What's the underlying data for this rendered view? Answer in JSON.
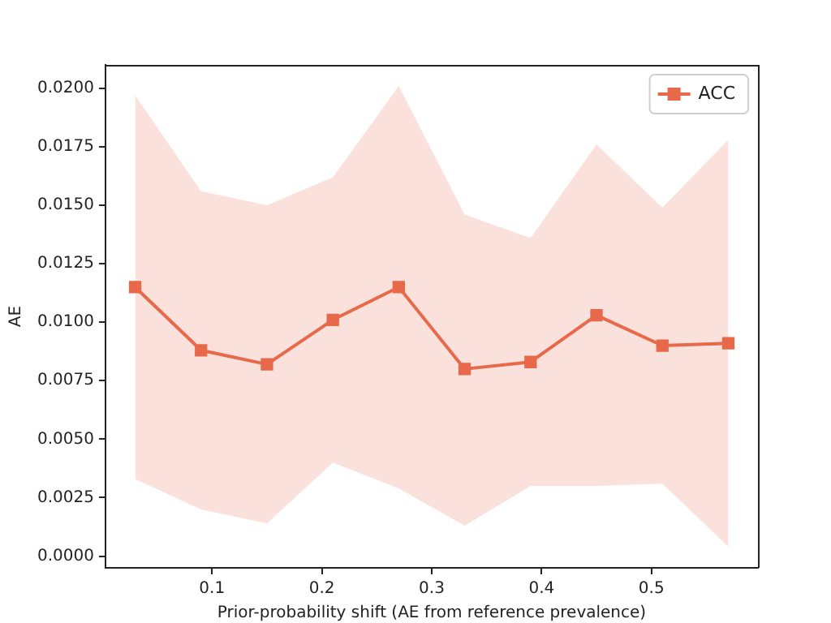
{
  "chart_data": {
    "type": "line",
    "xlabel": "Prior-probability shift (AE from reference prevalence)",
    "ylabel": "AE",
    "x": [
      0.03,
      0.09,
      0.15,
      0.21,
      0.27,
      0.33,
      0.39,
      0.45,
      0.51,
      0.57
    ],
    "series": [
      {
        "name": "ACC",
        "color": "#e8694a",
        "values": [
          0.0115,
          0.0088,
          0.0082,
          0.0101,
          0.0115,
          0.008,
          0.0083,
          0.0103,
          0.009,
          0.0091
        ],
        "lower": [
          0.0033,
          0.002,
          0.0014,
          0.004,
          0.0029,
          0.0013,
          0.003,
          0.003,
          0.0031,
          0.0004
        ],
        "upper": [
          0.0197,
          0.0156,
          0.015,
          0.0162,
          0.0201,
          0.0146,
          0.0136,
          0.0176,
          0.0149,
          0.0178
        ]
      }
    ],
    "xlim": [
      0.003,
      0.597
    ],
    "xticks": [
      0.1,
      0.2,
      0.3,
      0.4,
      0.5
    ],
    "ylim": [
      -0.0005,
      0.021
    ],
    "yticks": [
      {
        "value": 0,
        "label": "0.0000"
      },
      {
        "value": 0.0025,
        "label": "0.0025"
      },
      {
        "value": 0.005,
        "label": "0.0050"
      },
      {
        "value": 0.0075,
        "label": "0.0075"
      },
      {
        "value": 0.01,
        "label": "0.0100"
      },
      {
        "value": 0.0125,
        "label": "0.0125"
      },
      {
        "value": 0.015,
        "label": "0.0150"
      },
      {
        "value": 0.0175,
        "label": "0.0175"
      },
      {
        "value": 0.02,
        "label": "0.0200"
      }
    ],
    "legend": "top right",
    "marker": "square",
    "line_style": "solid",
    "grid": false
  }
}
